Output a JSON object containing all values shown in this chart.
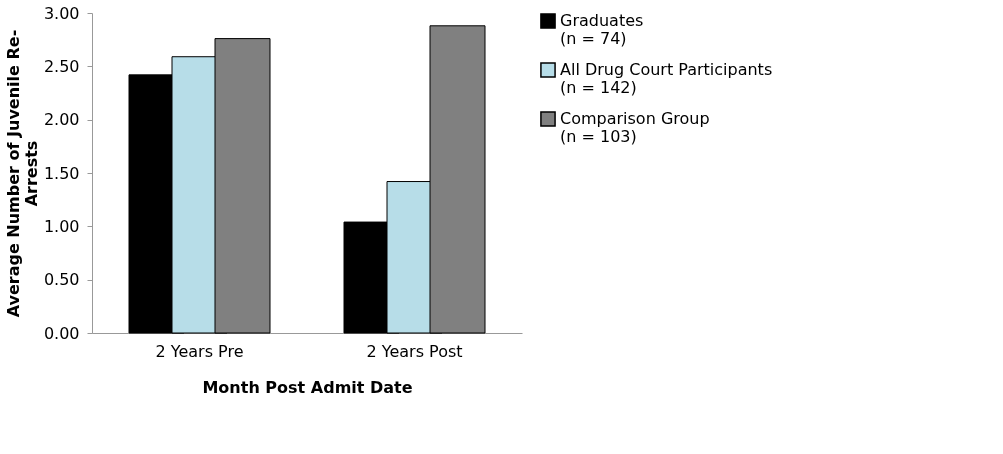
{
  "chart_data": {
    "type": "bar",
    "categories": [
      "2 Years Pre",
      "2 Years Post"
    ],
    "xlabel": "Month Post Admit Date",
    "ylabel": "Average Number of Juvenile Re-\nArrests",
    "series": [
      {
        "name": "Graduates\n(n = 74)",
        "color": "#000000",
        "values": [
          2.42,
          1.04
        ]
      },
      {
        "name": "All Drug Court Participants\n(n = 142)",
        "color": "#b7dde8",
        "values": [
          2.59,
          1.42
        ]
      },
      {
        "name": "Comparison Group\n(n = 103)",
        "color": "#808080",
        "values": [
          2.76,
          2.88
        ]
      }
    ],
    "ylim": [
      0,
      3
    ],
    "yticks": [
      {
        "value": 0,
        "label": "0.00"
      },
      {
        "value": 0.5,
        "label": "0.50"
      },
      {
        "value": 1,
        "label": "1.00"
      },
      {
        "value": 1.5,
        "label": "1.50"
      },
      {
        "value": 2,
        "label": "2.00"
      },
      {
        "value": 2.5,
        "label": "2.50"
      },
      {
        "value": 3,
        "label": "3.00"
      }
    ],
    "grid": false,
    "legend": "right"
  }
}
